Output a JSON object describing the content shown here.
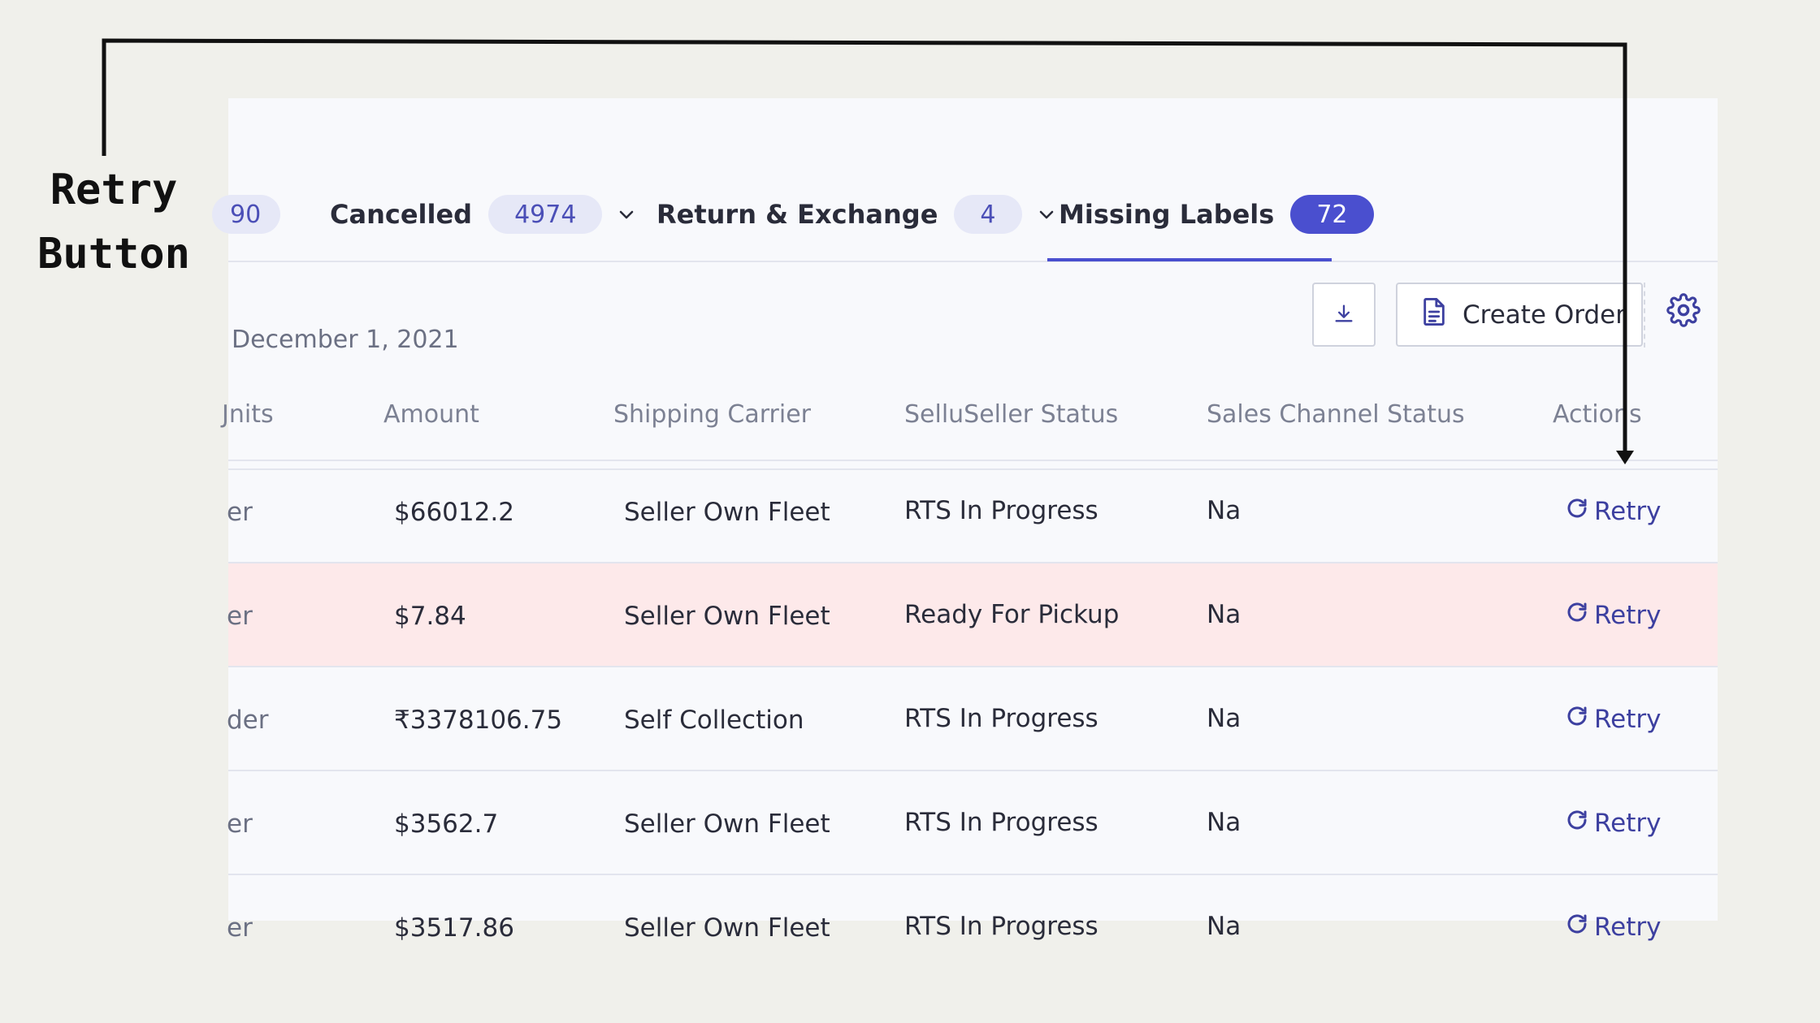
{
  "annotation": {
    "line1": "Retry",
    "line2": "Button"
  },
  "tabs": [
    {
      "label": "",
      "count": "90"
    },
    {
      "label": "Cancelled",
      "count": "4974"
    },
    {
      "label": "Return & Exchange",
      "count": "4"
    },
    {
      "label": "Missing Labels",
      "count": "72",
      "active": true
    }
  ],
  "toolbar": {
    "date": "December 1, 2021",
    "create_label": "Create Order"
  },
  "columns": [
    "Jnits",
    "Amount",
    "Shipping Carrier",
    "SelluSeller Status",
    "Sales Channel Status",
    "Actions"
  ],
  "rows": [
    {
      "type": "er",
      "amount": "$66012.2",
      "carrier": "Seller Own Fleet",
      "seller_status": "RTS In Progress",
      "channel_status": "Na",
      "action": "Retry"
    },
    {
      "type": "er",
      "amount": "$7.84",
      "carrier": "Seller Own Fleet",
      "seller_status": "Ready For Pickup",
      "channel_status": "Na",
      "action": "Retry",
      "highlighted": true
    },
    {
      "type": "der",
      "amount": "₹3378106.75",
      "carrier": "Self Collection",
      "seller_status": "RTS In Progress",
      "channel_status": "Na",
      "action": "Retry"
    },
    {
      "type": "er",
      "amount": "$3562.7",
      "carrier": "Seller Own Fleet",
      "seller_status": "RTS In Progress",
      "channel_status": "Na",
      "action": "Retry"
    },
    {
      "type": "er",
      "amount": "$3517.86",
      "carrier": "Seller Own Fleet",
      "seller_status": "RTS In Progress",
      "channel_status": "Na",
      "action": "Retry"
    }
  ],
  "colors": {
    "accent": "#4a4fcf",
    "highlight_row": "#fde9ea",
    "retry": "#3d40a0"
  },
  "icons": [
    "chevron-down-icon",
    "download-icon",
    "document-icon",
    "gear-icon",
    "refresh-icon"
  ]
}
